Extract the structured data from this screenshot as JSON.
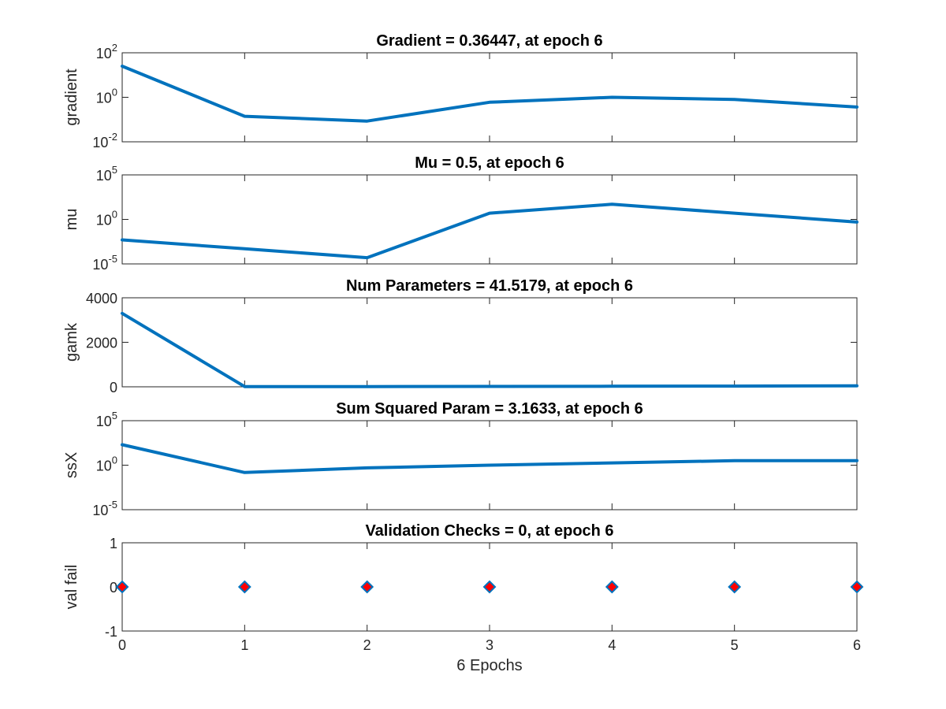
{
  "chart_data": [
    {
      "type": "line",
      "title": "Gradient = 0.36447, at epoch 6",
      "ylabel": "gradient",
      "yscale": "log",
      "ylim_exp": [
        -2,
        2
      ],
      "yticks": [
        {
          "base": "10",
          "exp": "-2"
        },
        {
          "base": "10",
          "exp": "0"
        },
        {
          "base": "10",
          "exp": "2"
        }
      ],
      "x": [
        0,
        1,
        2,
        3,
        4,
        5,
        6
      ],
      "values": [
        25,
        0.14,
        0.085,
        0.6,
        1.0,
        0.8,
        0.36447
      ],
      "color": "#0072BD"
    },
    {
      "type": "line",
      "title": "Mu = 0.5, at epoch 6",
      "ylabel": "mu",
      "yscale": "log",
      "ylim_exp": [
        -5,
        5
      ],
      "yticks": [
        {
          "base": "10",
          "exp": "-5"
        },
        {
          "base": "10",
          "exp": "0"
        },
        {
          "base": "10",
          "exp": "5"
        }
      ],
      "x": [
        0,
        1,
        2,
        3,
        4,
        5,
        6
      ],
      "values": [
        0.005,
        0.0005,
        5e-05,
        5,
        50,
        5,
        0.5
      ],
      "color": "#0072BD"
    },
    {
      "type": "line",
      "title": "Num Parameters = 41.5179, at epoch 6",
      "ylabel": "gamk",
      "yscale": "linear",
      "ylim": [
        0,
        4000
      ],
      "yticks": [
        {
          "base": "0"
        },
        {
          "base": "2000"
        },
        {
          "base": "4000"
        }
      ],
      "x": [
        0,
        1,
        2,
        3,
        4,
        5,
        6
      ],
      "values": [
        3300,
        10,
        12,
        18,
        25,
        32,
        41.5179
      ],
      "color": "#0072BD"
    },
    {
      "type": "line",
      "title": "Sum Squared Param = 3.1633, at epoch 6",
      "ylabel": "ssX",
      "yscale": "log",
      "ylim_exp": [
        -5,
        5
      ],
      "yticks": [
        {
          "base": "10",
          "exp": "-5"
        },
        {
          "base": "10",
          "exp": "0"
        },
        {
          "base": "10",
          "exp": "5"
        }
      ],
      "x": [
        0,
        1,
        2,
        3,
        4,
        5,
        6
      ],
      "values": [
        200,
        0.15,
        0.5,
        1.0,
        1.8,
        3.2,
        3.1633
      ],
      "color": "#0072BD"
    },
    {
      "type": "scatter",
      "title": "Validation Checks = 0, at epoch 6",
      "ylabel": "val fail",
      "xlabel": "6 Epochs",
      "yscale": "linear",
      "ylim": [
        -1,
        1
      ],
      "yticks": [
        {
          "base": "-1"
        },
        {
          "base": "0"
        },
        {
          "base": "1"
        }
      ],
      "xticks": [
        "0",
        "1",
        "2",
        "3",
        "4",
        "5",
        "6"
      ],
      "x": [
        0,
        1,
        2,
        3,
        4,
        5,
        6
      ],
      "values": [
        0,
        0,
        0,
        0,
        0,
        0,
        0
      ],
      "color": "#0072BD",
      "marker_fill": "#FF0000"
    }
  ]
}
